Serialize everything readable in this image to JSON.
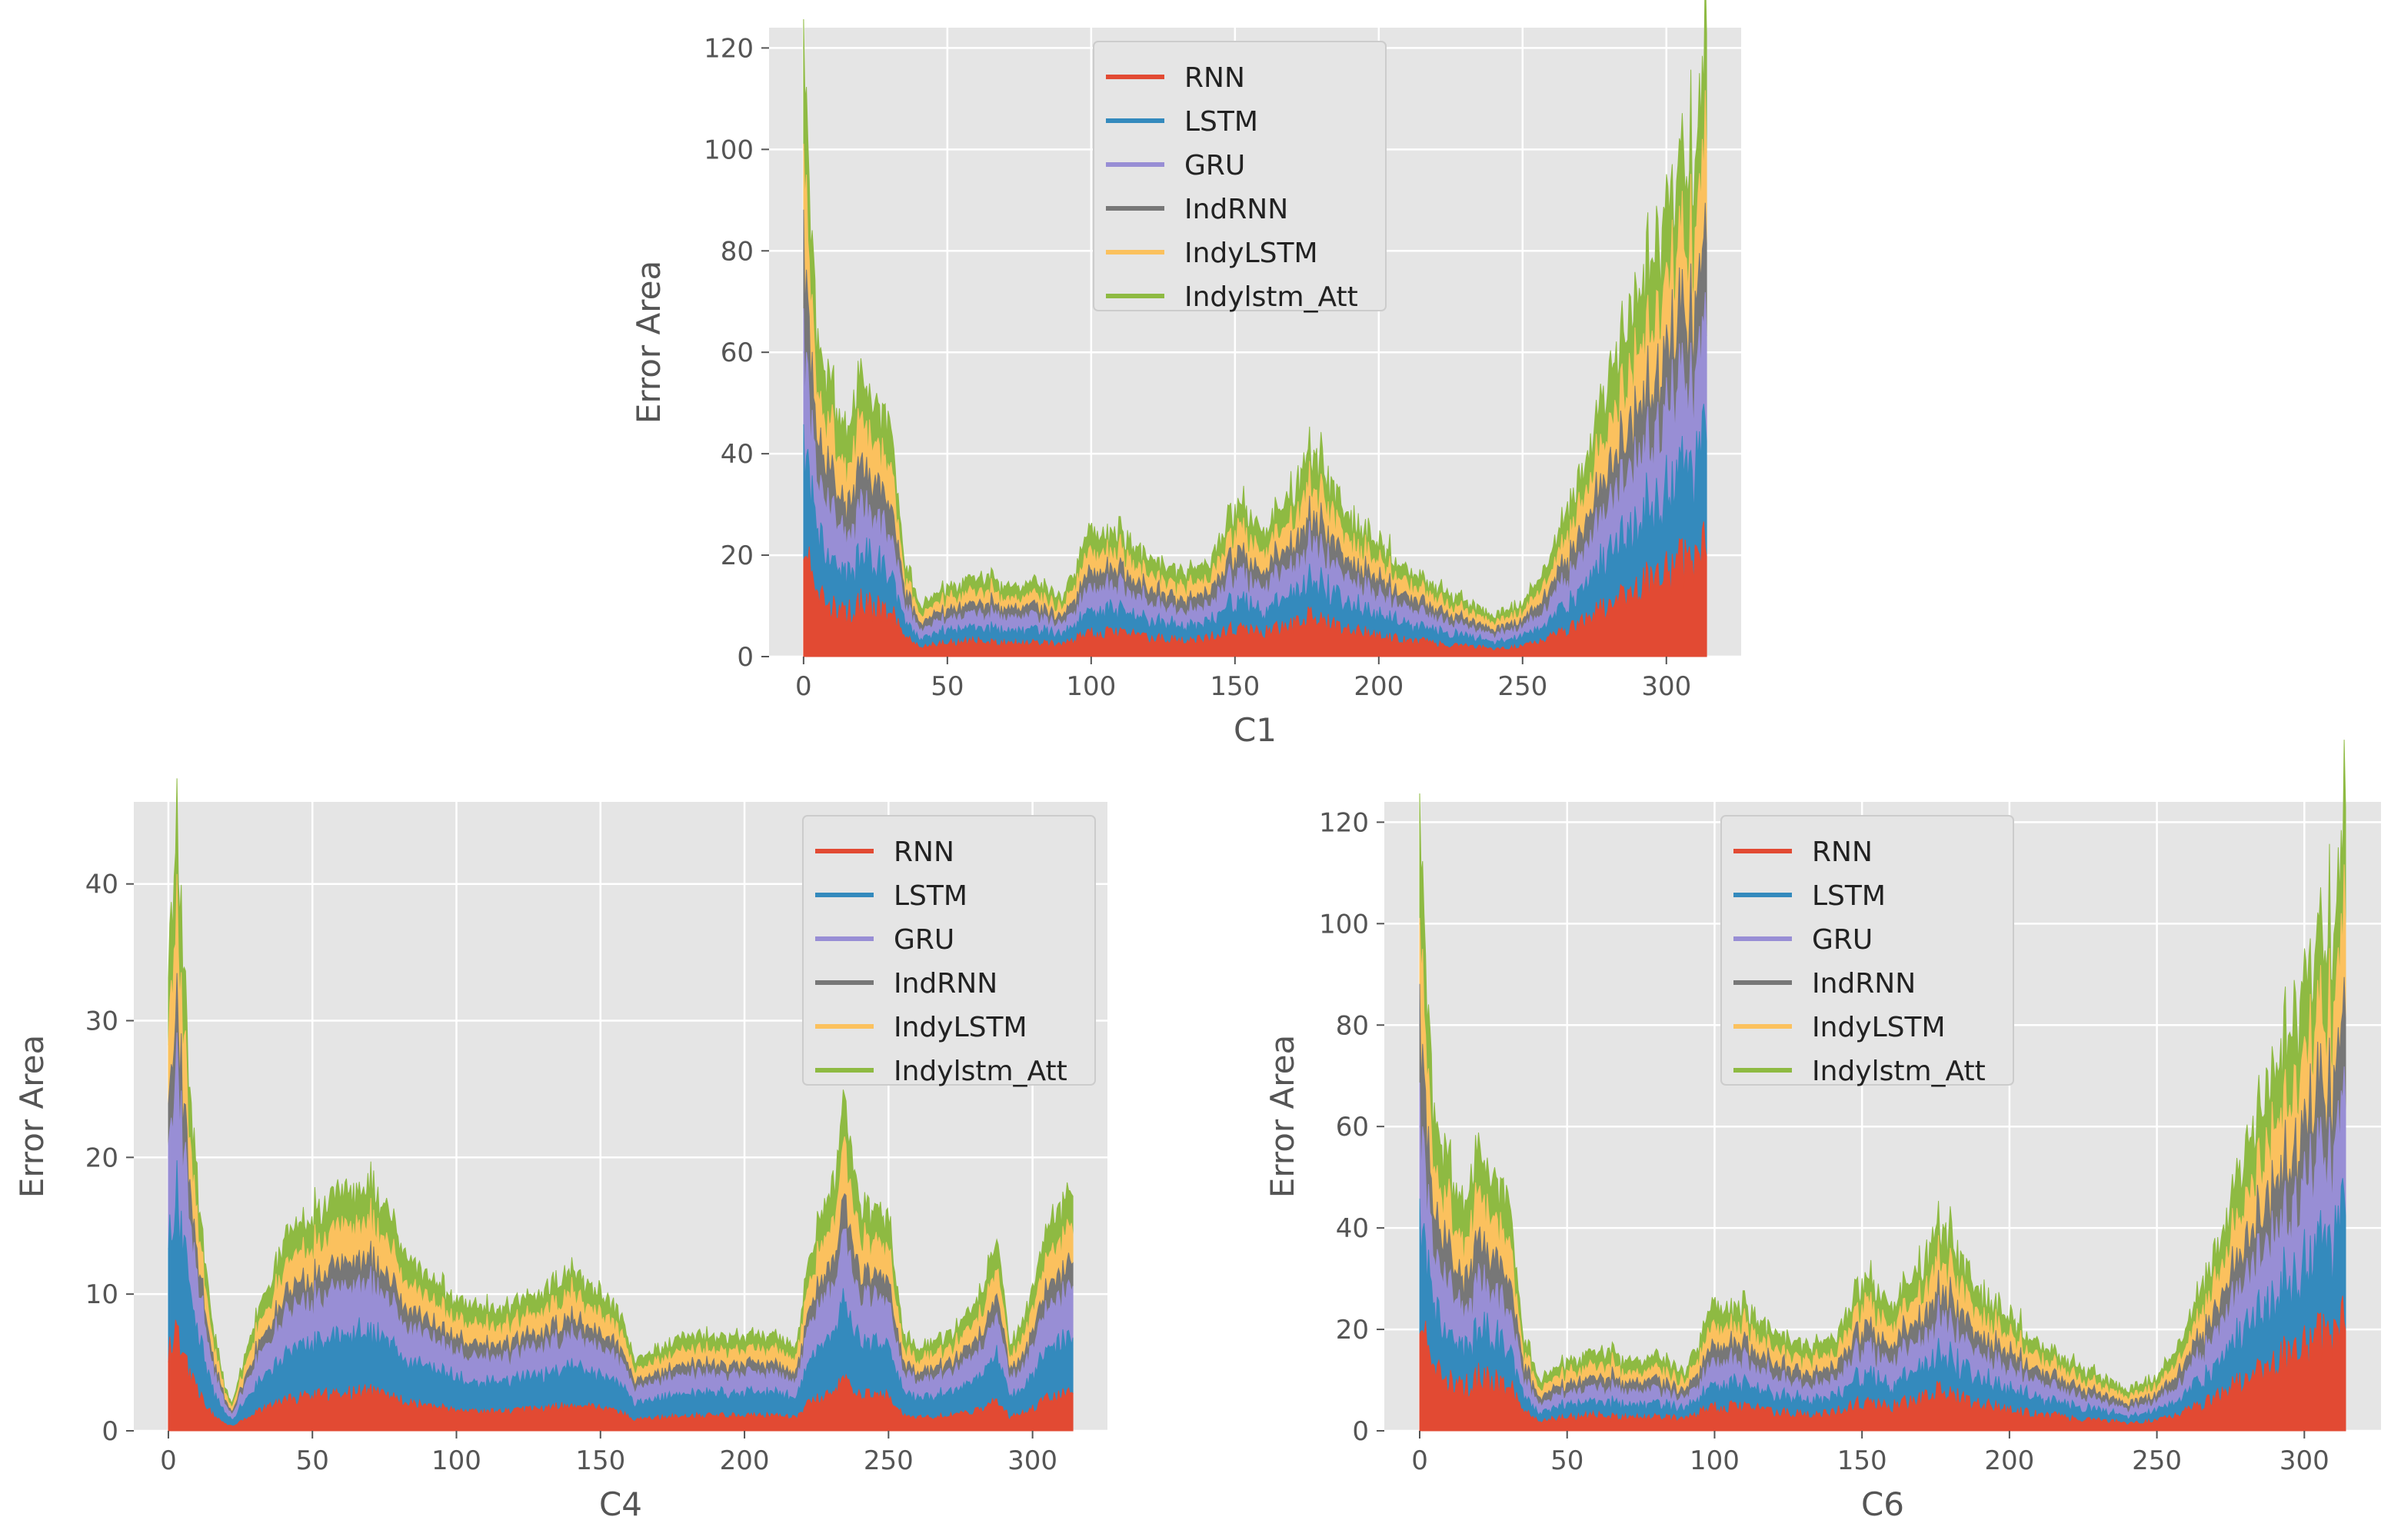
{
  "colors": {
    "RNN": "#E24A33",
    "LSTM": "#348ABD",
    "GRU": "#988ED5",
    "IndRNN": "#777777",
    "IndyLSTM": "#FBC15E",
    "Indylstm_Att": "#8EBA42",
    "plot_bg": "#E5E5E5",
    "grid": "#FFFFFF"
  },
  "chart_data": [
    {
      "id": "c1",
      "type": "area",
      "stacked": true,
      "title": "",
      "xlabel": "C1",
      "ylabel": "Error Area",
      "xlim": [
        -12,
        326
      ],
      "ylim": [
        0,
        124
      ],
      "xticks": [
        0,
        50,
        100,
        150,
        200,
        250,
        300
      ],
      "yticks": [
        0,
        20,
        40,
        60,
        80,
        100,
        120
      ],
      "legend": [
        "RNN",
        "LSTM",
        "GRU",
        "IndRNN",
        "IndyLSTM",
        "Indylstm_Att"
      ],
      "legend_position": "top-center",
      "x_range": [
        0,
        314
      ],
      "profile": {
        "x": [
          0,
          2,
          5,
          10,
          15,
          20,
          25,
          30,
          35,
          40,
          50,
          60,
          70,
          80,
          90,
          100,
          110,
          120,
          130,
          140,
          150,
          160,
          170,
          175,
          180,
          190,
          200,
          210,
          220,
          230,
          240,
          250,
          260,
          270,
          280,
          290,
          300,
          305,
          310,
          314
        ],
        "total": [
          119,
          95,
          60,
          52,
          45,
          55,
          50,
          48,
          20,
          10,
          14,
          16,
          14,
          15,
          12,
          25,
          24,
          20,
          17,
          18,
          30,
          25,
          32,
          40,
          38,
          28,
          22,
          17,
          14,
          11,
          8,
          10,
          20,
          35,
          55,
          72,
          85,
          95,
          100,
          120
        ]
      },
      "shares": {
        "RNN": 0.19,
        "LSTM": 0.18,
        "GRU": 0.18,
        "IndRNN": 0.13,
        "IndyLSTM": 0.15,
        "Indylstm_Att": 0.17
      },
      "jitter": 0.3,
      "seed": 7
    },
    {
      "id": "c4",
      "type": "area",
      "stacked": true,
      "title": "",
      "xlabel": "C4",
      "ylabel": "Error Area",
      "xlim": [
        -12,
        326
      ],
      "ylim": [
        0,
        46
      ],
      "xticks": [
        0,
        50,
        100,
        150,
        200,
        250,
        300
      ],
      "yticks": [
        0,
        10,
        20,
        30,
        40
      ],
      "legend": [
        "RNN",
        "LSTM",
        "GRU",
        "IndRNN",
        "IndyLSTM",
        "Indylstm_Att"
      ],
      "legend_position": "top-right",
      "x_range": [
        0,
        314
      ],
      "profile": {
        "x": [
          0,
          3,
          6,
          10,
          15,
          20,
          22,
          30,
          40,
          50,
          60,
          70,
          80,
          90,
          100,
          110,
          120,
          130,
          140,
          150,
          158,
          162,
          170,
          180,
          190,
          200,
          210,
          218,
          222,
          230,
          235,
          240,
          250,
          255,
          260,
          270,
          280,
          288,
          292,
          300,
          305,
          310,
          314
        ],
        "total": [
          35,
          44,
          30,
          18,
          8,
          3,
          2,
          8,
          14,
          16,
          17,
          18,
          14,
          11,
          10,
          9,
          9,
          10,
          12,
          10,
          8,
          5,
          6,
          7,
          7,
          7,
          7,
          6,
          12,
          18,
          24,
          17,
          16,
          7,
          6,
          7,
          9,
          14,
          6,
          10,
          15,
          17,
          17
        ]
      },
      "shares": {
        "RNN": 0.16,
        "LSTM": 0.24,
        "GRU": 0.2,
        "IndRNN": 0.1,
        "IndyLSTM": 0.15,
        "Indylstm_Att": 0.15
      },
      "jitter": 0.2,
      "seed": 13
    },
    {
      "id": "c6",
      "type": "area",
      "stacked": true,
      "title": "",
      "xlabel": "C6",
      "ylabel": "Error Area",
      "xlim": [
        -12,
        326
      ],
      "ylim": [
        0,
        124
      ],
      "xticks": [
        0,
        50,
        100,
        150,
        200,
        250,
        300
      ],
      "yticks": [
        0,
        20,
        40,
        60,
        80,
        100,
        120
      ],
      "legend": [
        "RNN",
        "LSTM",
        "GRU",
        "IndRNN",
        "IndyLSTM",
        "Indylstm_Att"
      ],
      "legend_position": "top-center",
      "x_range": [
        0,
        314
      ],
      "profile": {
        "x": [
          0,
          2,
          5,
          10,
          15,
          20,
          25,
          30,
          35,
          40,
          50,
          60,
          70,
          80,
          90,
          100,
          110,
          120,
          130,
          140,
          150,
          160,
          170,
          175,
          180,
          190,
          200,
          210,
          220,
          230,
          240,
          250,
          260,
          270,
          280,
          290,
          300,
          305,
          310,
          314
        ],
        "total": [
          119,
          95,
          60,
          52,
          45,
          55,
          50,
          48,
          20,
          10,
          14,
          16,
          14,
          15,
          12,
          25,
          24,
          20,
          17,
          18,
          30,
          25,
          32,
          40,
          38,
          28,
          22,
          17,
          14,
          11,
          8,
          10,
          20,
          35,
          55,
          72,
          85,
          95,
          100,
          120
        ]
      },
      "shares": {
        "RNN": 0.19,
        "LSTM": 0.18,
        "GRU": 0.18,
        "IndRNN": 0.13,
        "IndyLSTM": 0.15,
        "Indylstm_Att": 0.17
      },
      "jitter": 0.3,
      "seed": 7
    }
  ]
}
